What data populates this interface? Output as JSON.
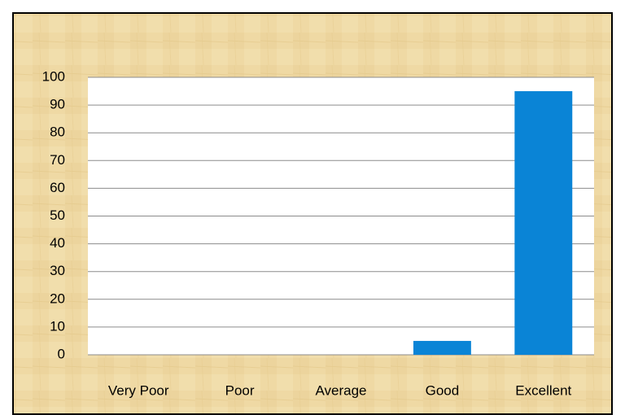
{
  "chart_data": {
    "type": "bar",
    "categories": [
      "Very Poor",
      "Poor",
      "Average",
      "Good",
      "Excellent"
    ],
    "values": [
      0,
      0,
      0,
      5,
      95
    ],
    "color": "#0a84d6",
    "ylim": [
      0,
      100
    ],
    "yticks": [
      0,
      10,
      20,
      30,
      40,
      50,
      60,
      70,
      80,
      90,
      100
    ],
    "grid": true
  }
}
